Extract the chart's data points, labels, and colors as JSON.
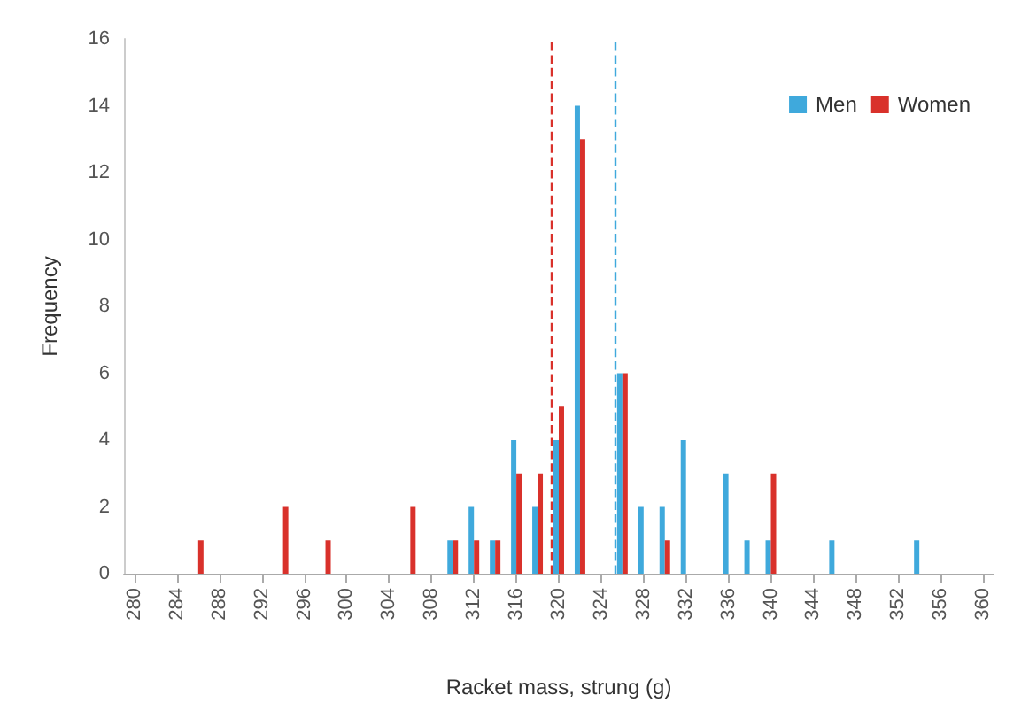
{
  "chart_data": {
    "type": "histogram",
    "xlabel": "Racket mass, strung (g)",
    "ylabel": "Frequency",
    "bins": [
      279,
      281,
      283,
      285,
      287,
      289,
      291,
      293,
      295,
      297,
      299,
      301,
      303,
      305,
      307,
      309,
      311,
      313,
      315,
      317,
      319,
      321,
      323,
      325,
      327,
      329,
      331,
      333,
      335,
      337,
      339,
      341,
      343,
      345,
      347,
      349,
      351,
      353,
      355,
      357,
      359,
      361
    ],
    "series": [
      {
        "name": "Men",
        "color": "#3fa9dc",
        "values": [
          0,
          0,
          0,
          0,
          0,
          0,
          0,
          0,
          0,
          0,
          0,
          0,
          0,
          0,
          0,
          1,
          2,
          1,
          4,
          2,
          4,
          14,
          0,
          6,
          2,
          2,
          4,
          0,
          3,
          1,
          1,
          0,
          0,
          1,
          0,
          0,
          0,
          1,
          0,
          0,
          0
        ]
      },
      {
        "name": "Women",
        "color": "#d9312b",
        "values": [
          0,
          0,
          0,
          1,
          0,
          0,
          0,
          2,
          0,
          1,
          0,
          0,
          0,
          2,
          0,
          1,
          1,
          1,
          3,
          3,
          5,
          13,
          0,
          6,
          0,
          1,
          0,
          0,
          0,
          0,
          3,
          0,
          0,
          0,
          0,
          0,
          0,
          0,
          0,
          0,
          0
        ]
      }
    ],
    "xlim": [
      279,
      361
    ],
    "xticks": [
      280,
      284,
      288,
      292,
      296,
      300,
      304,
      308,
      312,
      316,
      320,
      324,
      328,
      332,
      336,
      340,
      344,
      348,
      352,
      356,
      360
    ],
    "ylim": [
      0,
      16
    ],
    "yticks": [
      0,
      2,
      4,
      6,
      8,
      10,
      12,
      14,
      16
    ],
    "ref_lines": [
      {
        "axis": "x",
        "value": 319.3,
        "color": "#d9312b",
        "line_style": "dashed"
      },
      {
        "axis": "x",
        "value": 325.3,
        "color": "#3fa9dc",
        "line_style": "dashed"
      }
    ],
    "grid": false,
    "legend": "top right"
  }
}
